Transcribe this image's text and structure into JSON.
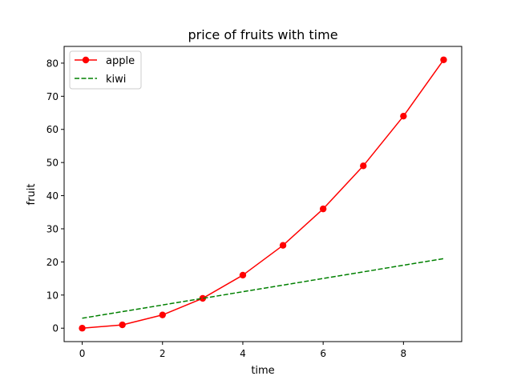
{
  "chart_data": {
    "type": "line",
    "title": "price of fruits with time",
    "xlabel": "time",
    "ylabel": "fruit",
    "xlim": [
      -0.45,
      9.45
    ],
    "ylim": [
      -4.05,
      85.05
    ],
    "x_ticks": [
      0,
      2,
      4,
      6,
      8
    ],
    "y_ticks": [
      0,
      10,
      20,
      30,
      40,
      50,
      60,
      70,
      80
    ],
    "x_tick_labels": [
      "0",
      "2",
      "4",
      "6",
      "8"
    ],
    "y_tick_labels": [
      "0",
      "10",
      "20",
      "30",
      "40",
      "50",
      "60",
      "70",
      "80"
    ],
    "grid": false,
    "legend_position": "top-left",
    "series": [
      {
        "name": "apple",
        "color": "#ff0000",
        "line_style": "solid",
        "marker": "circle",
        "x": [
          0,
          1,
          2,
          3,
          4,
          5,
          6,
          7,
          8,
          9
        ],
        "y": [
          0,
          1,
          4,
          9,
          16,
          25,
          36,
          49,
          64,
          81
        ]
      },
      {
        "name": "kiwi",
        "color": "#008000",
        "line_style": "dashed",
        "marker": "none",
        "x": [
          0,
          1,
          2,
          3,
          4,
          5,
          6,
          7,
          8,
          9
        ],
        "y": [
          3,
          5,
          7,
          9,
          11,
          13,
          15,
          17,
          19,
          21
        ]
      }
    ]
  }
}
